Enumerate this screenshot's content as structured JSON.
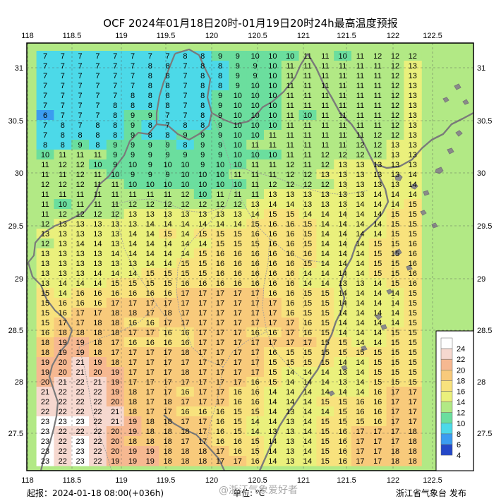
{
  "title": "OCF 2024年01月18日20时-01月19日20时24h最高温度预报",
  "footer": {
    "issue": "起报：2024-01-18 08:00(+036h)",
    "unit": "单位: ℃",
    "publisher": "浙江省气象台 发布",
    "watermark": "@浙江气象爱好者"
  },
  "axes": {
    "lon_ticks": [
      "118",
      "118.5",
      "119",
      "119.5",
      "120",
      "120.5",
      "121",
      "121.5",
      "122",
      "122.5"
    ],
    "lat_ticks": [
      "31",
      "30.5",
      "30",
      "29.5",
      "29",
      "28.5",
      "28",
      "27.5"
    ]
  },
  "legend": {
    "values": [
      "24",
      "22",
      "20",
      "18",
      "16",
      "14",
      "12",
      "10",
      "8",
      "6",
      "4"
    ],
    "colors": [
      "#fefefe",
      "#f6d8cf",
      "#f6b891",
      "#f8ca7b",
      "#f8e27d",
      "#eaf07c",
      "#b2e985",
      "#6bde9e",
      "#4cd9e8",
      "#3b9cf0",
      "#2448c8"
    ]
  },
  "grid_values": [
    "7 7 7 7 7 7 7 7 8 8 9 9 10 10 10 11 11 10 11 12 12 12",
    "7 7 7 7 7 7 8 8 7 8 8 9 9 10 11 11 11 11 11 11 12 13",
    "7 7 7 7 7 7 8 8 7 8 8 9 9 10 11 11 11 11 11 11 12 13",
    "7 7 7 7 7 7 8 8 7 8 8 9 10 10 11 11 11 11 11 11 12 13",
    "7 7 7 7 7 8 8 8 7 8 9 10 10 10 11 11 11 11 11 11 12 13",
    "7 7 7 7 8 8 8 8 7 8 9 10 10 10 11 11 11 11 11 11 12 13",
    "6 7 7 7 8 9 9 7 7 8 9 10 10 10 11 10 11 11 11 11 12 13",
    "7 8 7 8 8 9 8 7 8 8 9 10 10 10 11 11 11 11 11 11 12 13",
    "7 8 8 8 8 9 8 8 9 9 9 10 10 11 11 11 11 11 11 12 12 13",
    "8 8 9 8 9 9 9 9 8 9 9 10 11 11 11 11 11 11 12 12 13 13",
    "10 11 11 11 9 9 9 9 9 9 9 10 10 10 11 11 12 12 12 12 13 13",
    "11 12 12 10 9 10 9 10 10 9 10 10 11 11 12 11 12 13 13 13 13 13",
    "11 11 12 11 10 9 9 9 10 10 10 11 11 11 12 12 13 13 13 13 13 14",
    "12 12 12 11 11 10 10 10 10 10 10 10 11 12 12 12 12 13 13 13 13 14",
    "11 11 11 11 11 11 11 11 12 10 11 11 11 13 13 13 13 13 13 14 14 14",
    "11 10 11 11 11 12 12 12 12 12 12 12 13 14 14 13 13 13 14 14 14 15",
    "11 12 12 12 12 13 13 13 13 13 13 13 14 15 15 14 14 14 14 14 15 15",
    "12 13 13 13 13 13 14 14 14 14 14 14 15 16 16 15 14 14 14 14 15 15",
    "13 13 13 13 13 14 14 15 14 15 15 15 16 16 16 15 14 14 14 14 15 15",
    "12 13 14 14 13 14 14 14 14 14 15 15 15 16 16 15 14 14 14 15 15 16",
    "13 13 13 13 14 14 14 14 14 15 16 16 16 16 16 16 14 14 14 15 15 16",
    "13 13 13 13 13 13 14 14 15 15 16 16 16 16 16 15 14 14 14 15 15 16",
    "13 13 13 14 14 14 15 15 15 15 16 16 16 16 16 14 14 14 14 15 15 16",
    "13 14 14 14 15 15 15 15 16 16 16 16 16 16 16 14 14 13 13 14 15 16",
    "15 14 16 16 16 16 16 16 17 17 17 17 17 16 16 15 15 14 14 14 14 15",
    "15 16 16 16 17 17 17 17 17 17 17 17 17 17 16 15 15 14 14 14 14 15",
    "15 16 17 17 18 18 17 18 17 17 17 17 17 17 16 15 15 14 14 14 14 15",
    "15 17 17 18 18 16 16 17 17 17 17 17 17 17 17 16 15 14 14 14 14 15",
    "16 18 18 18 18 17 17 16 16 17 17 17 16 16 17 16 15 14 14 14 15 15",
    "18 19 19 18 17 16 16 16 16 17 17 17 17 17 17 17 15 15 14 14 15 15",
    "18 19 19 18 17 17 17 17 18 17 17 17 17 16 15 15 15 15 15 15 15 15",
    "19 20 21 19 18 17 17 17 17 17 17 17 17 15 15 15 15 14 14 15 15 15",
    "19 20 21 20 19 17 17 17 18 17 17 17 17 15 14 14 14 13 14 15 15 15",
    "20 21 22 21 19 17 17 17 17 17 17 17 16 15 14 14 14 13 14 15 15 15",
    "21 22 22 22 19 18 17 17 16 17 17 16 16 14 14 14 14 14 14 16 17 17",
    "22 22 22 22 20 18 17 18 17 17 17 16 16 14 14 14 15 15 16 16 17 17",
    "22 22 22 22 21 18 17 17 16 16 16 15 15 14 13 14 14 15 16 16 17 17",
    "23 23 23 22 21 19 18 18 17 17 16 15 14 14 13 14 15 15 15 16 17 17",
    "23 22 22 22 20 19 18 18 18 17 16 15 14 13 13 14 15 16 17 17 17 18",
    "23 22 23 22 20 18 18 18 17 17 16 16 15 14 13 14 15 16 17 17 17 18",
    "23 22 23 22 20 19 19 18 18 18 17 16 15 14 13 14 15 16 17 17 18 18",
    "23 22 23 22 19 19 19 18 18 18 17 17 16 14 13 14 15 16 17 17 18 18"
  ]
}
